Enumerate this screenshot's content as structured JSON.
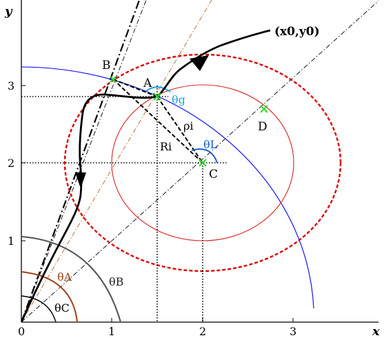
{
  "axes": {
    "x_label": "x",
    "y_label": "y",
    "x_ticks": [
      "0",
      "1",
      "2",
      "3"
    ],
    "y_ticks": [
      "1",
      "2",
      "3"
    ],
    "xlim": [
      0,
      3.95
    ],
    "ylim": [
      0,
      3.55
    ]
  },
  "points": {
    "start": {
      "label": "(x0,y0)",
      "x": 2.78,
      "y": 3.27
    },
    "A": {
      "label": "A",
      "x": 1.5,
      "y": 2.87
    },
    "B": {
      "label": "B",
      "x": 1.04,
      "y": 3.07
    },
    "C": {
      "label": "C",
      "x": 2.0,
      "y": 2.0
    },
    "D": {
      "label": "D",
      "x": 2.7,
      "y": 2.7
    }
  },
  "circles": {
    "blue_arc": {
      "center": [
        0,
        0
      ],
      "radius": 3.25,
      "color": "#0000ff"
    },
    "red_solid": {
      "center": [
        2.0,
        2.0
      ],
      "radius": 1.0,
      "color": "#dd2222"
    },
    "red_dashed": {
      "center": [
        2.0,
        2.0
      ],
      "radius": 1.4,
      "color": "#dd0000"
    }
  },
  "angles": {
    "theta_A": {
      "label": "θA",
      "color": "#a0401a"
    },
    "theta_B": {
      "label": "θB",
      "color": "#222222"
    },
    "theta_C": {
      "label": "θC",
      "color": "#000000"
    },
    "theta_g": {
      "label": "θg",
      "color": "#1fa0e0"
    },
    "theta_L": {
      "label": "θL",
      "color": "#1d5ec8"
    }
  },
  "segments": {
    "rho_label": "ρi",
    "R_label": "Ri"
  },
  "colors": {
    "marker": "#22dd22",
    "trajectory": "#000000",
    "ray_A": "#c07040"
  }
}
